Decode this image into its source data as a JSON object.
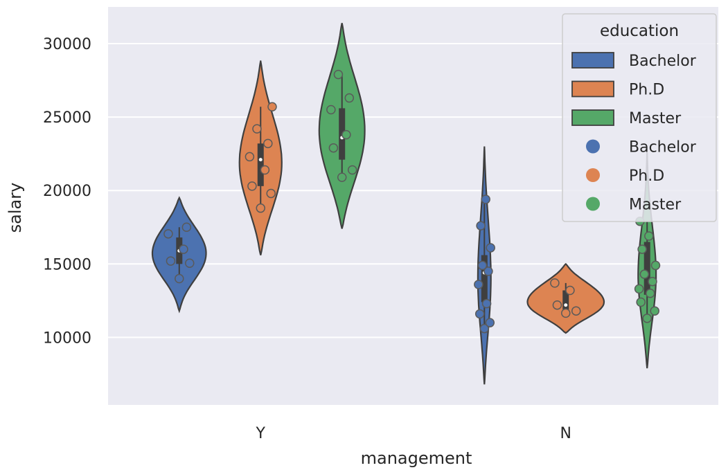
{
  "chart_data": {
    "type": "violin",
    "title": "",
    "xlabel": "management",
    "ylabel": "salary",
    "categories": [
      "Y",
      "N"
    ],
    "ylim": [
      5400,
      32500
    ],
    "yticks": [
      10000,
      15000,
      20000,
      25000,
      30000
    ],
    "grid": true,
    "legend": {
      "title": "education",
      "placement": "top-right",
      "entries": [
        {
          "label": "Bachelor",
          "kind": "violin",
          "series": "Bachelor"
        },
        {
          "label": "Ph.D",
          "kind": "violin",
          "series": "Ph.D"
        },
        {
          "label": "Master",
          "kind": "violin",
          "series": "Master"
        },
        {
          "label": "Bachelor",
          "kind": "point",
          "series": "Bachelor"
        },
        {
          "label": "Ph.D",
          "kind": "point",
          "series": "Ph.D"
        },
        {
          "label": "Master",
          "kind": "point",
          "series": "Master"
        }
      ]
    },
    "colors": {
      "Bachelor": "#4c72b0",
      "Ph.D": "#dd8452",
      "Master": "#55a868"
    },
    "series": [
      {
        "name": "Bachelor",
        "groups": [
          {
            "category": "Y",
            "range": [
              11800,
              19500
            ],
            "q1": 15000,
            "median": 15900,
            "q3": 16800,
            "max_width": 0.66,
            "points": [
              14000,
              15050,
              15200,
              16000,
              17050,
              17500
            ]
          },
          {
            "category": "N",
            "range": [
              6800,
              23000
            ],
            "q1": 12400,
            "median": 14400,
            "q3": 15600,
            "max_width": 0.16,
            "points": [
              10600,
              11000,
              11600,
              12300,
              13600,
              14500,
              14900,
              16100,
              17600,
              19400
            ]
          }
        ]
      },
      {
        "name": "Ph.D",
        "groups": [
          {
            "category": "Y",
            "range": [
              15600,
              28800
            ],
            "q1": 20300,
            "median": 22100,
            "q3": 23200,
            "max_width": 0.52,
            "points": [
              18800,
              19800,
              20300,
              21400,
              22300,
              23200,
              24200,
              25700
            ]
          },
          {
            "category": "N",
            "range": [
              10300,
              15000
            ],
            "q1": 11900,
            "median": 12200,
            "q3": 13200,
            "max_width": 0.94,
            "points": [
              11650,
              11800,
              12200,
              13200,
              13700
            ]
          }
        ]
      },
      {
        "name": "Master",
        "groups": [
          {
            "category": "Y",
            "range": [
              17400,
              31400
            ],
            "q1": 22100,
            "median": 23600,
            "q3": 25600,
            "max_width": 0.56,
            "points": [
              20900,
              21400,
              22900,
              23800,
              25500,
              26300,
              27900
            ]
          },
          {
            "category": "N",
            "range": [
              7900,
              22600
            ],
            "q1": 12900,
            "median": 14300,
            "q3": 16500,
            "max_width": 0.22,
            "points": [
              11300,
              11800,
              12400,
              13000,
              13300,
              13800,
              14300,
              14900,
              16000,
              16900,
              17900
            ]
          }
        ]
      }
    ]
  }
}
